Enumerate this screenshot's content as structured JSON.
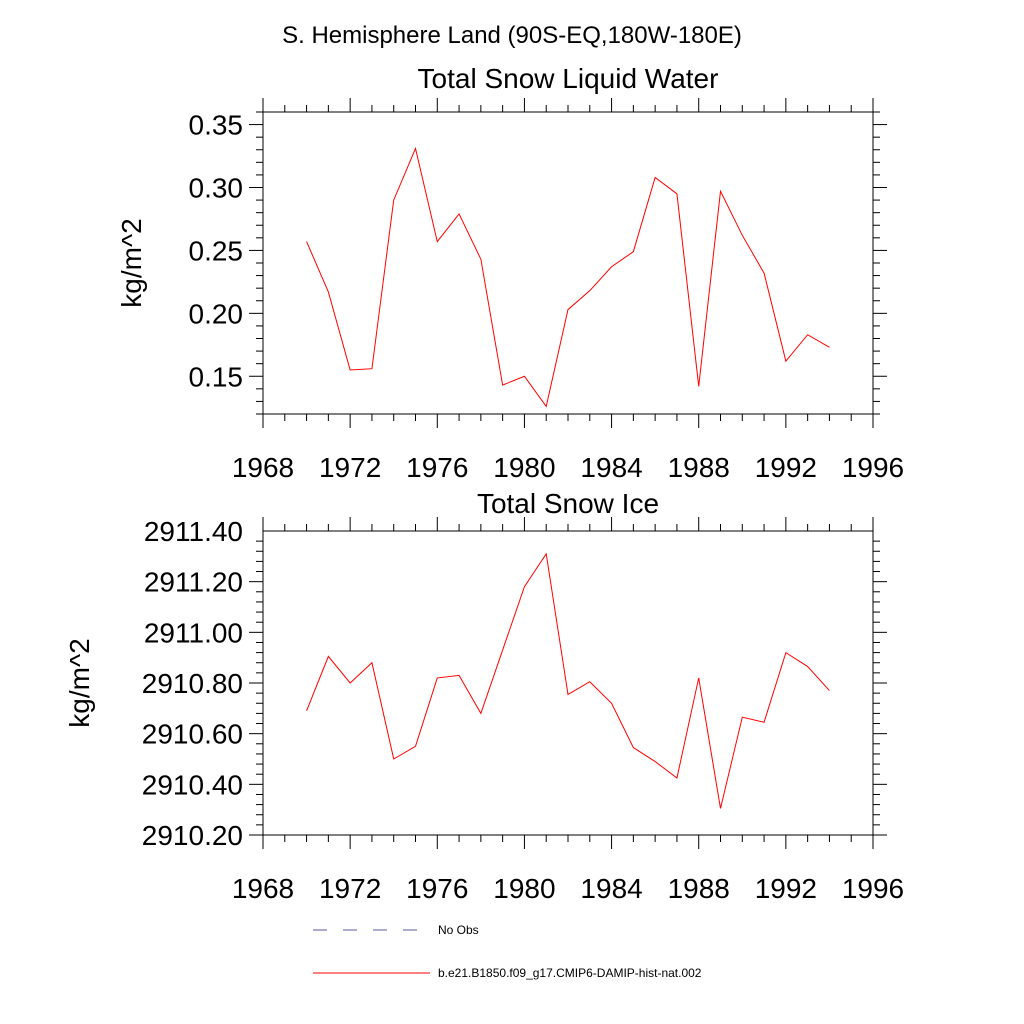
{
  "suptitle": "S. Hemisphere Land (90S-EQ,180W-180E)",
  "chart_data": [
    {
      "type": "line",
      "title": "Total Snow Liquid Water",
      "ylabel": "kg/m^2",
      "xlabel": "",
      "xlim": [
        1968,
        1996
      ],
      "ylim": [
        0.12,
        0.36
      ],
      "xticks": [
        "1968",
        "1972",
        "1976",
        "1980",
        "1984",
        "1988",
        "1992",
        "1996"
      ],
      "yticks": [
        "0.15",
        "0.20",
        "0.25",
        "0.30",
        "0.35"
      ],
      "grid": false,
      "series": [
        {
          "name": "b.e21.B1850.f09_g17.CMIP6-DAMIP-hist-nat.002",
          "color": "#ff0000",
          "x": [
            1970,
            1971,
            1972,
            1973,
            1974,
            1975,
            1976,
            1977,
            1978,
            1979,
            1980,
            1981,
            1982,
            1983,
            1984,
            1985,
            1986,
            1987,
            1988,
            1989,
            1990,
            1991,
            1992,
            1993,
            1994
          ],
          "values": [
            0.257,
            0.217,
            0.155,
            0.156,
            0.29,
            0.331,
            0.257,
            0.279,
            0.243,
            0.143,
            0.15,
            0.126,
            0.203,
            0.218,
            0.237,
            0.249,
            0.308,
            0.295,
            0.142,
            0.297,
            0.262,
            0.232,
            0.162,
            0.183,
            0.173
          ]
        }
      ]
    },
    {
      "type": "line",
      "title": "Total Snow Ice",
      "ylabel": "kg/m^2",
      "xlabel": "",
      "xlim": [
        1968,
        1996
      ],
      "ylim": [
        2910.2,
        2911.4
      ],
      "xticks": [
        "1968",
        "1972",
        "1976",
        "1980",
        "1984",
        "1988",
        "1992",
        "1996"
      ],
      "yticks": [
        "2910.20",
        "2910.40",
        "2910.60",
        "2910.80",
        "2911.00",
        "2911.20",
        "2911.40"
      ],
      "grid": false,
      "series": [
        {
          "name": "b.e21.B1850.f09_g17.CMIP6-DAMIP-hist-nat.002",
          "color": "#ff0000",
          "x": [
            1970,
            1971,
            1972,
            1973,
            1974,
            1975,
            1976,
            1977,
            1978,
            1979,
            1980,
            1981,
            1982,
            1983,
            1984,
            1985,
            1986,
            1987,
            1988,
            1989,
            1990,
            1991,
            1992,
            1993,
            1994
          ],
          "values": [
            2910.69,
            2910.905,
            2910.8,
            2910.88,
            2910.5,
            2910.55,
            2910.82,
            2910.83,
            2910.68,
            2910.93,
            2911.18,
            2911.31,
            2910.755,
            2910.805,
            2910.72,
            2910.545,
            2910.49,
            2910.425,
            2910.82,
            2910.305,
            2910.665,
            2910.645,
            2910.92,
            2910.865,
            2910.77
          ]
        }
      ]
    }
  ],
  "legend": {
    "items": [
      {
        "label": "No Obs",
        "style": "dashed",
        "color": "#5a5aa0"
      },
      {
        "label": "b.e21.B1850.f09_g17.CMIP6-DAMIP-hist-nat.002",
        "style": "solid",
        "color": "#ff0000"
      }
    ]
  }
}
